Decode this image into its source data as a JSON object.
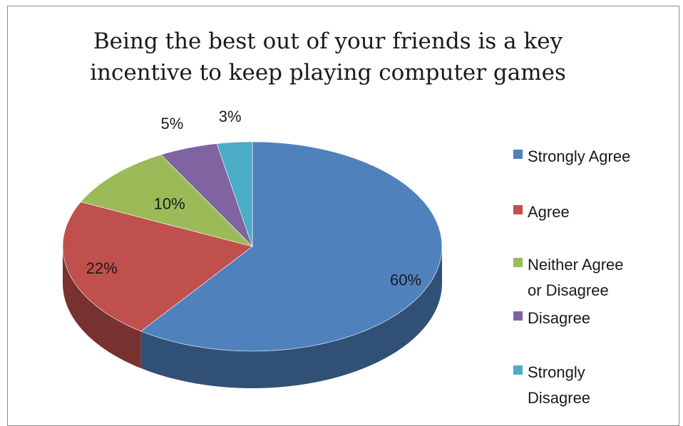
{
  "chart_data": {
    "type": "pie",
    "title": "Being the best out of your friends is a key\nincentive to keep playing computer games",
    "categories": [
      "Strongly Agree",
      "Agree",
      "Neither Agree or Disagree",
      "Disagree",
      "Strongly Disagree"
    ],
    "values": [
      60,
      22,
      10,
      5,
      3
    ],
    "labels": [
      "60%",
      "22%",
      "10%",
      "5%",
      "3%"
    ],
    "colors": [
      "#4f81bd",
      "#c0504d",
      "#9bbb59",
      "#8064a2",
      "#4bacc6"
    ],
    "legend": {
      "position": "right",
      "entries": [
        "Strongly Agree",
        "Agree",
        "Neither Agree\nor Disagree",
        "Disagree",
        "Strongly\nDisagree"
      ]
    },
    "style": "3d"
  }
}
